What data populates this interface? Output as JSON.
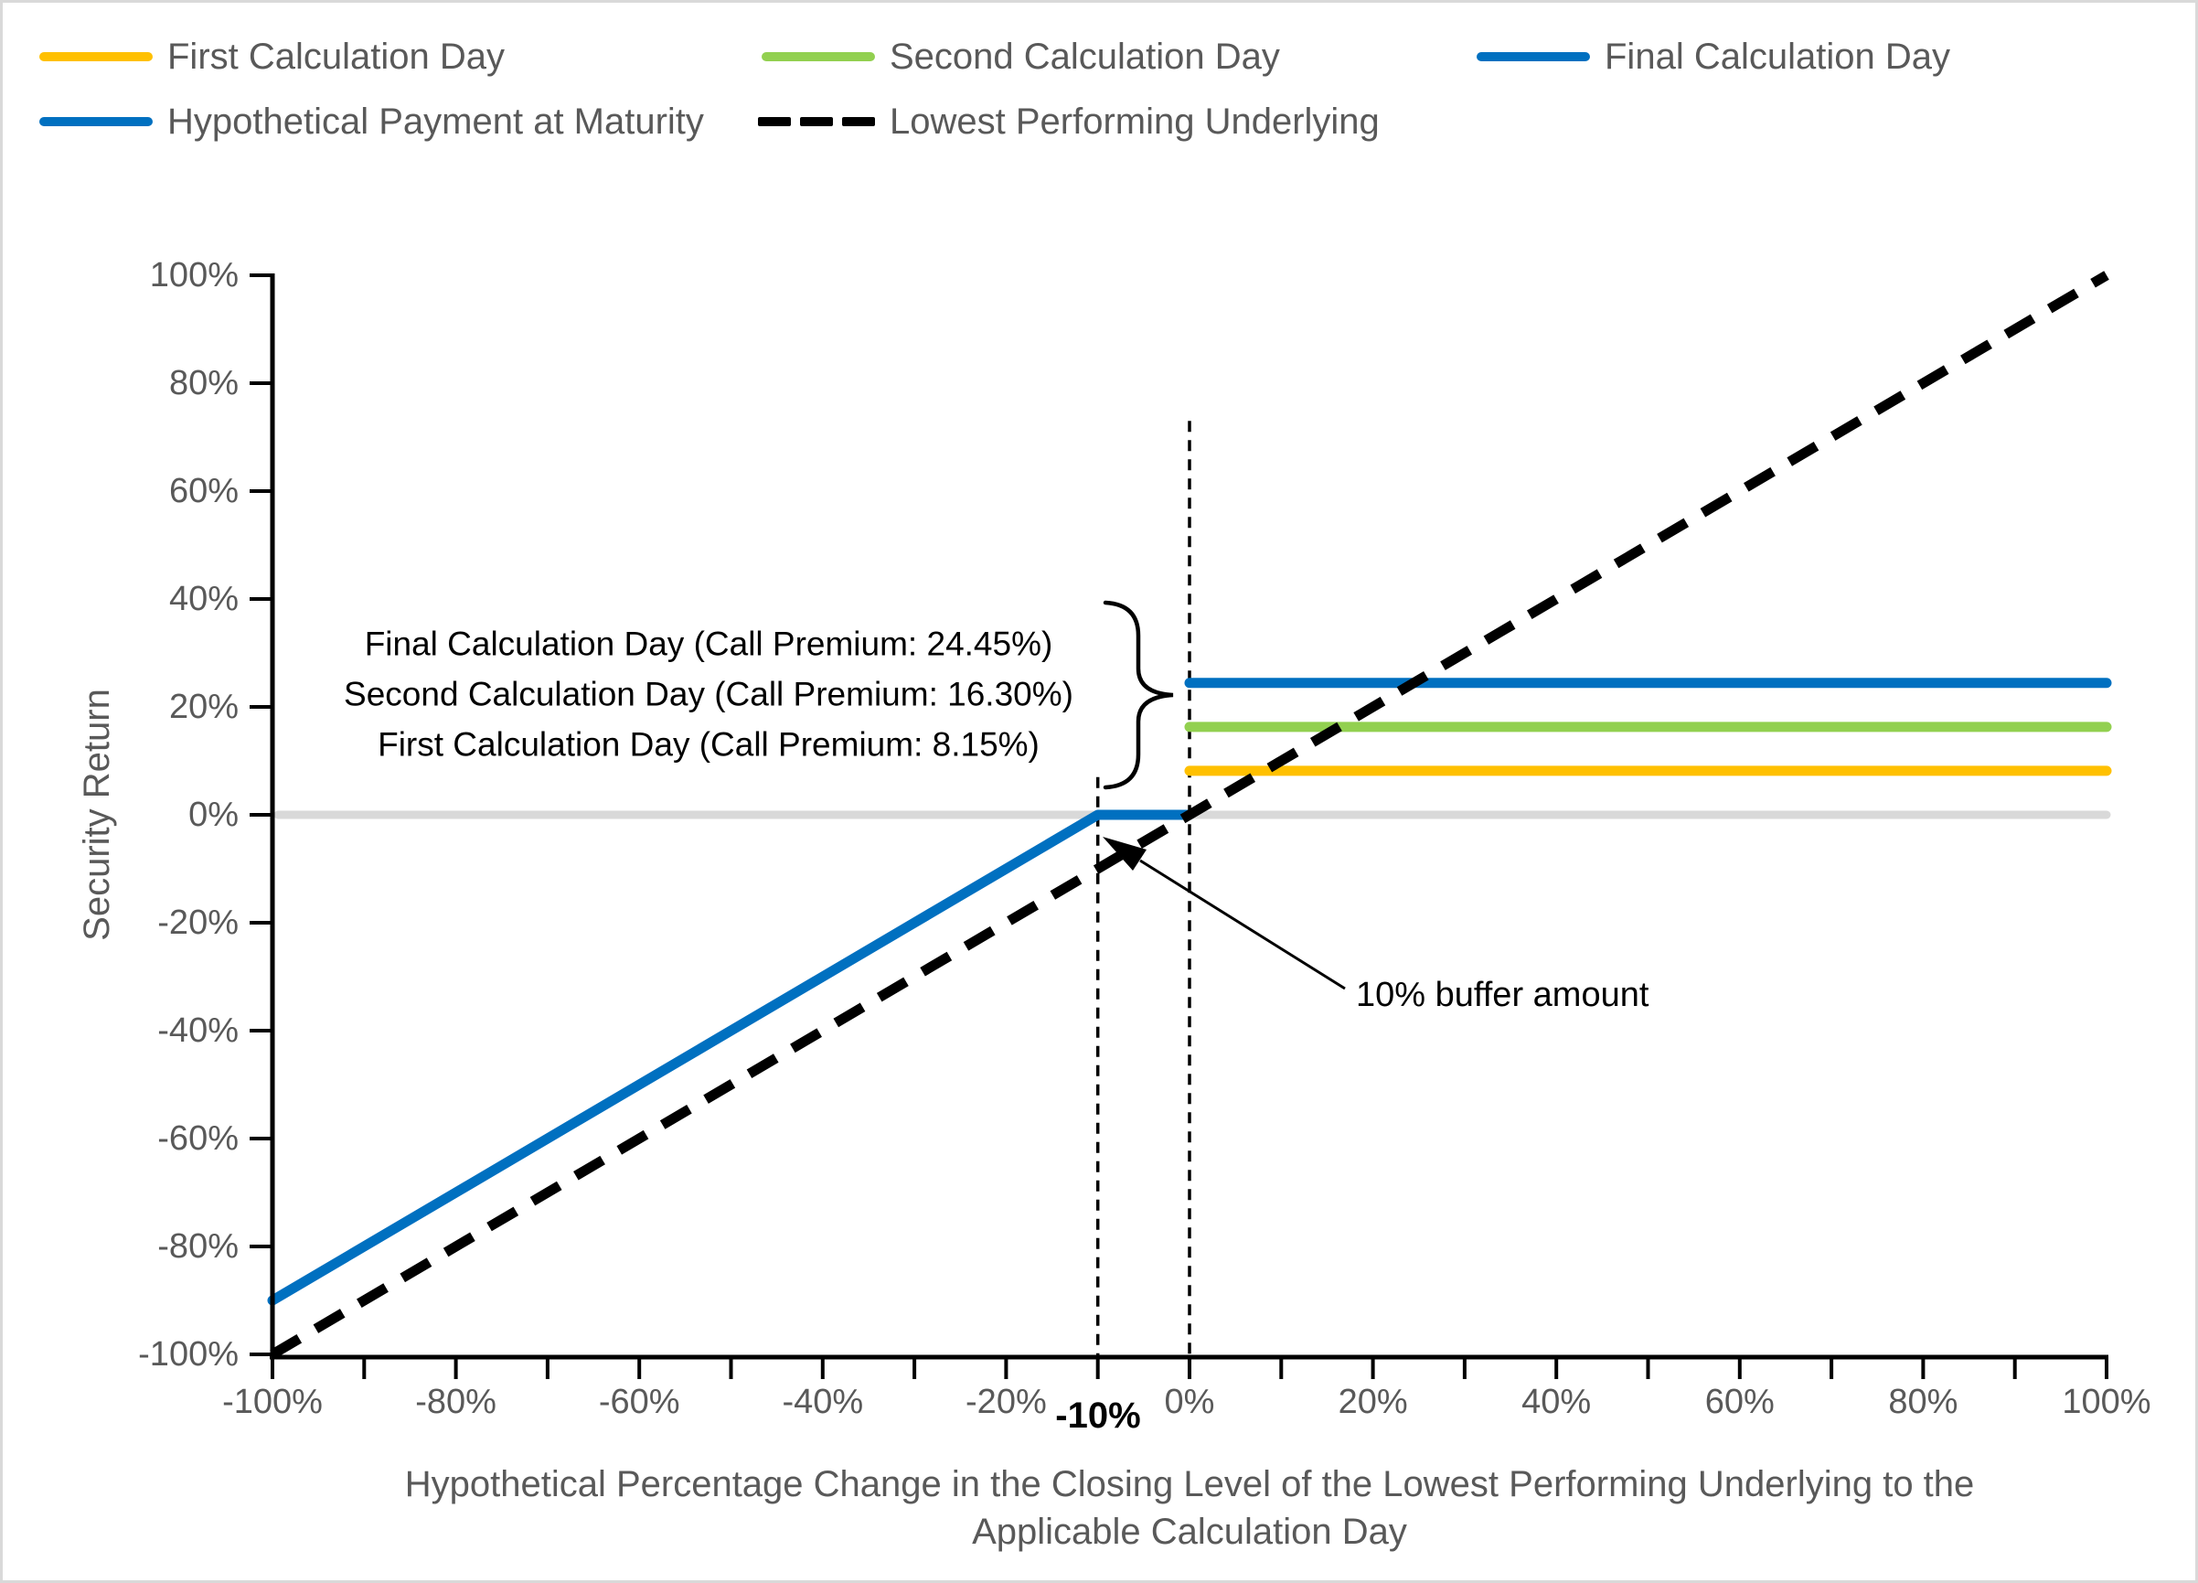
{
  "canvas": {
    "background": "#FFFFFF",
    "border_color": "#D9D9D9"
  },
  "legend": {
    "text_color": "#595959",
    "rows": [
      [
        {
          "label": "First Calculation Day",
          "swatch": "solid",
          "color": "#FFC000"
        },
        {
          "label": "Second Calculation Day",
          "swatch": "solid",
          "color": "#92D050"
        },
        {
          "label": "Final Calculation Day",
          "swatch": "solid",
          "color": "#0070C0"
        }
      ],
      [
        {
          "label": "Hypothetical Payment at Maturity",
          "swatch": "solid",
          "color": "#0070C0"
        },
        {
          "label": "Lowest Performing Underlying",
          "swatch": "dashed",
          "color": "#000000"
        }
      ]
    ]
  },
  "y_axis": {
    "title": "Security Return"
  },
  "x_axis": {
    "title_line1": "Hypothetical Percentage Change in the Closing Level of the Lowest Performing Underlying to the",
    "title_line2": "Applicable Calculation Day",
    "buffer_tick_label": "-10%"
  },
  "annotations": {
    "premium_lines": [
      "Final Calculation Day (Call Premium: 24.45%)",
      "Second Calculation Day (Call Premium: 16.30%)",
      "First Calculation Day (Call Premium: 8.15%)"
    ],
    "buffer_label": "10% buffer amount"
  },
  "chart_data": {
    "type": "line",
    "x_range": [
      -100,
      100
    ],
    "y_range": [
      -100,
      100
    ],
    "x_minor_tick_step": 10,
    "grid": "zero-line-only",
    "zero_line_color": "#D9D9D9",
    "axis_color": "#000000",
    "x_tick_labels": [
      {
        "v": -100,
        "t": "-100%"
      },
      {
        "v": -80,
        "t": "-80%"
      },
      {
        "v": -60,
        "t": "-60%"
      },
      {
        "v": -40,
        "t": "-40%"
      },
      {
        "v": -20,
        "t": "-20%"
      },
      {
        "v": 0,
        "t": "0%"
      },
      {
        "v": 20,
        "t": "20%"
      },
      {
        "v": 40,
        "t": "40%"
      },
      {
        "v": 60,
        "t": "60%"
      },
      {
        "v": 80,
        "t": "80%"
      },
      {
        "v": 100,
        "t": "100%"
      }
    ],
    "y_tick_labels": [
      {
        "v": 100,
        "t": "100%"
      },
      {
        "v": 80,
        "t": "80%"
      },
      {
        "v": 60,
        "t": "60%"
      },
      {
        "v": 40,
        "t": "40%"
      },
      {
        "v": 20,
        "t": "20%"
      },
      {
        "v": 0,
        "t": "0%"
      },
      {
        "v": -20,
        "t": "-20%"
      },
      {
        "v": -40,
        "t": "-40%"
      },
      {
        "v": -60,
        "t": "-60%"
      },
      {
        "v": -80,
        "t": "-80%"
      },
      {
        "v": -100,
        "t": "-100%"
      }
    ],
    "series": [
      {
        "id": "first-calculation-day",
        "name": "First Calculation Day",
        "color": "#FFC000",
        "width": 11,
        "call_premium_pct": 8.15,
        "points": [
          [
            0,
            8.15
          ],
          [
            100,
            8.15
          ]
        ]
      },
      {
        "id": "second-calculation-day",
        "name": "Second Calculation Day",
        "color": "#92D050",
        "width": 11,
        "call_premium_pct": 16.3,
        "points": [
          [
            0,
            16.3
          ],
          [
            100,
            16.3
          ]
        ]
      },
      {
        "id": "final-calculation-day",
        "name": "Final Calculation Day",
        "color": "#0070C0",
        "width": 11,
        "call_premium_pct": 24.45,
        "points": [
          [
            0,
            24.45
          ],
          [
            100,
            24.45
          ]
        ]
      },
      {
        "id": "hypothetical-payment-at-maturity",
        "name": "Hypothetical Payment at Maturity",
        "color": "#0070C0",
        "width": 11,
        "buffer_pct": 10,
        "points": [
          [
            -100,
            -90
          ],
          [
            -10,
            0
          ],
          [
            0,
            0
          ]
        ]
      },
      {
        "id": "lowest-performing-underlying",
        "name": "Lowest Performing Underlying",
        "color": "#000000",
        "width": 11,
        "dash": "34 21",
        "points": [
          [
            -100,
            -100
          ],
          [
            100,
            100
          ]
        ]
      }
    ],
    "guides": [
      {
        "x": -10,
        "y_from": 7,
        "y_to": -100.5
      },
      {
        "x": 0,
        "y_from": 73,
        "y_to": -100.5
      }
    ]
  }
}
